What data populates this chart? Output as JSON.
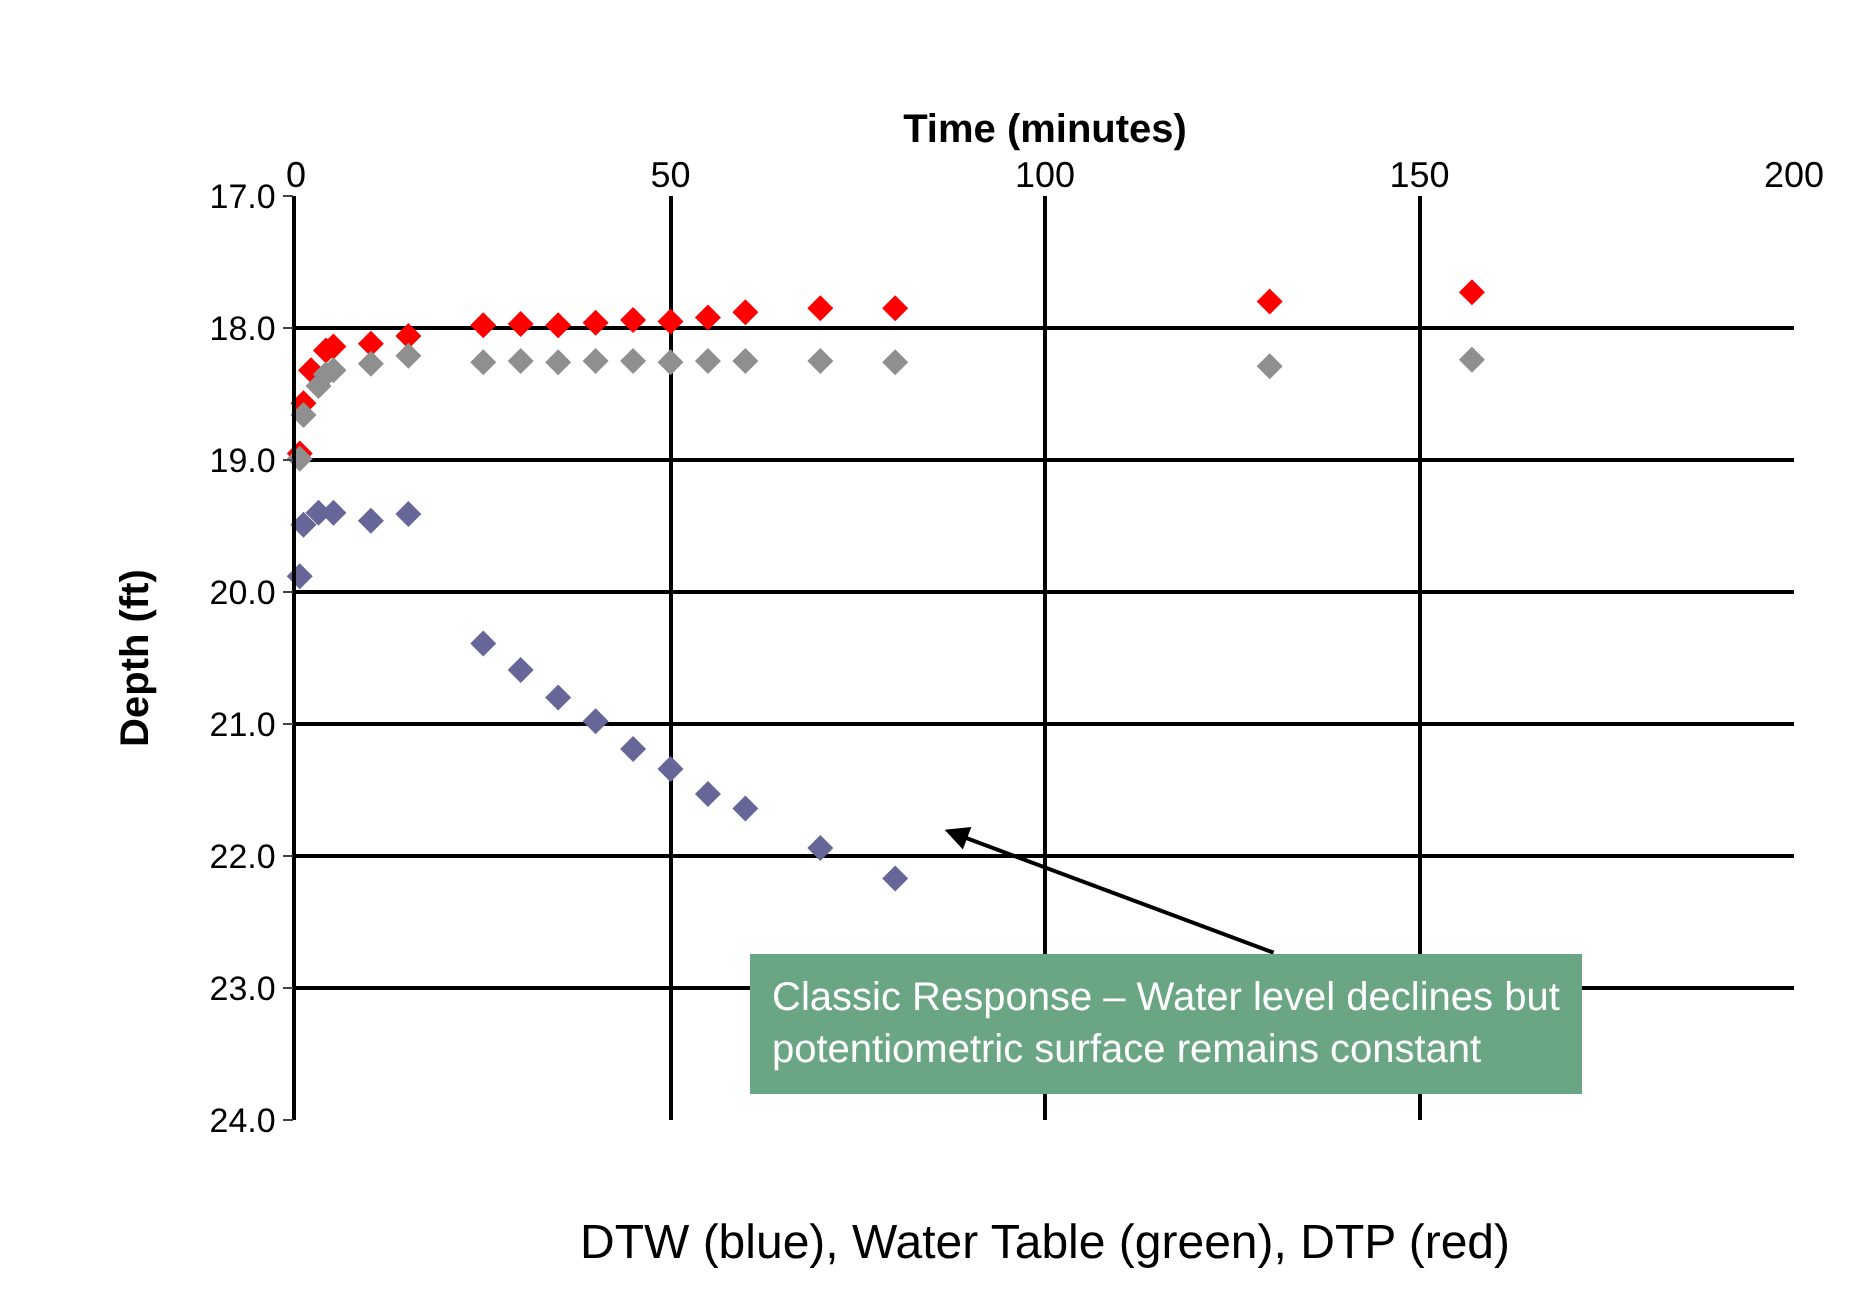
{
  "chart_data": {
    "type": "scatter",
    "xlabel": "Time (minutes)",
    "ylabel": "Depth (ft)",
    "xlim": [
      0,
      200
    ],
    "xticks": [
      0,
      50,
      100,
      150,
      200
    ],
    "ylim": [
      24,
      17
    ],
    "yticks": [
      {
        "value": 17,
        "label": "17.0"
      },
      {
        "value": 18,
        "label": "18.0"
      },
      {
        "value": 19,
        "label": "19.0"
      },
      {
        "value": 20,
        "label": "20.0"
      },
      {
        "value": 21,
        "label": "21.0"
      },
      {
        "value": 22,
        "label": "22.0"
      },
      {
        "value": 23,
        "label": "23.0"
      },
      {
        "value": 24,
        "label": "24.0"
      }
    ],
    "grid": true,
    "marker": "diamond",
    "series": [
      {
        "color": "#666699",
        "x": [
          0.5,
          1,
          3,
          5,
          10,
          15,
          25,
          30,
          35,
          40,
          45,
          50,
          55,
          60,
          70,
          80
        ],
        "values": [
          19.88,
          19.49,
          19.4,
          19.4,
          19.46,
          19.41,
          20.39,
          20.59,
          20.8,
          20.98,
          21.19,
          21.34,
          21.53,
          21.64,
          21.94,
          22.17
        ]
      },
      {
        "color": "#ff0000",
        "x": [
          0.5,
          1,
          2,
          4,
          5,
          10,
          15,
          25,
          30,
          35,
          40,
          45,
          50,
          55,
          60,
          70,
          80,
          130,
          157
        ],
        "values": [
          18.95,
          18.57,
          18.32,
          18.17,
          18.14,
          18.12,
          18.06,
          17.98,
          17.97,
          17.98,
          17.96,
          17.94,
          17.95,
          17.92,
          17.88,
          17.85,
          17.85,
          17.8,
          17.73
        ]
      },
      {
        "color": "#8f8f8f",
        "x": [
          0.5,
          1,
          3,
          4,
          5,
          10,
          15,
          25,
          30,
          35,
          40,
          45,
          50,
          55,
          60,
          70,
          80,
          130,
          157
        ],
        "values": [
          18.99,
          18.66,
          18.44,
          18.35,
          18.32,
          18.27,
          18.21,
          18.26,
          18.25,
          18.26,
          18.25,
          18.25,
          18.26,
          18.25,
          18.25,
          18.25,
          18.26,
          18.29,
          18.24
        ]
      }
    ],
    "annotations": [
      "Classic Response – Water level declines but\npotentiometric surface remains constant",
      "DTW (blue), Water Table (green), DTP (red)"
    ]
  }
}
